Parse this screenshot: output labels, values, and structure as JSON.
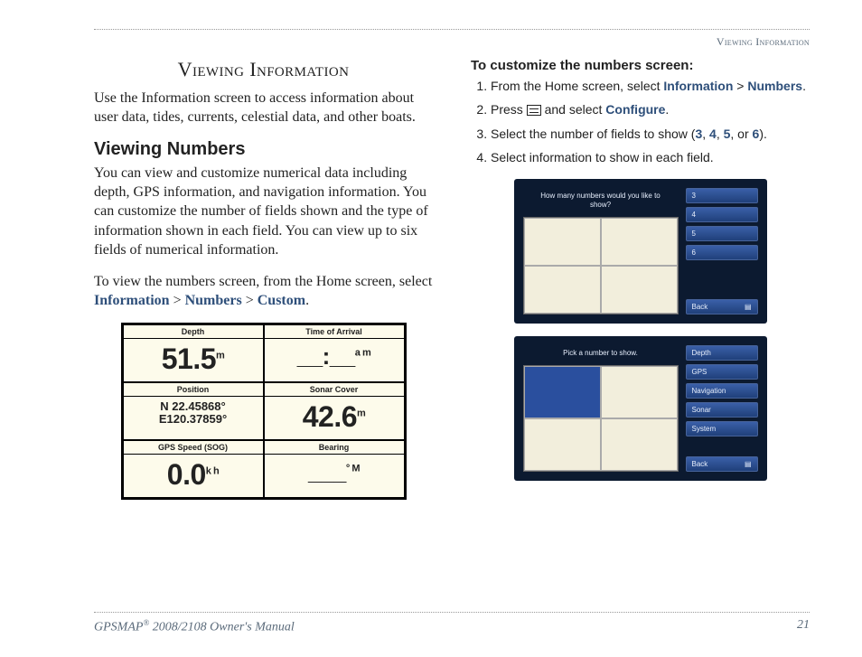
{
  "runningHead": "Viewing Information",
  "left": {
    "title": "Viewing Information",
    "intro": "Use the Information screen to access information about user data, tides, currents, celestial data, and other boats.",
    "subhead": "Viewing Numbers",
    "para1": "You can view and customize numerical data including depth, GPS information, and navigation information. You can customize the number of fields shown and the type of information shown in each field. You can view up to six fields of numerical information.",
    "para2_pre": "To view the numbers screen, from the Home screen, select ",
    "nav1": "Information",
    "gt1": " > ",
    "nav2": "Numbers",
    "gt2": " > ",
    "nav3": "Custom",
    "dot": "."
  },
  "numbersPanel": {
    "cells": [
      {
        "label": "Depth",
        "value": "51.5",
        "unit": "m",
        "big": true
      },
      {
        "label": "Time of Arrival",
        "value": "__:__",
        "unit": "a m"
      },
      {
        "label": "Position",
        "line1": "N  22.45868°",
        "line2": "E120.37859°"
      },
      {
        "label": "Sonar Cover",
        "value": "42.6",
        "unit": "m",
        "big": true
      },
      {
        "label": "GPS Speed (SOG)",
        "value": "0.0",
        "unit": "k h",
        "big": true
      },
      {
        "label": "Bearing",
        "value": "___",
        "unit": "° M"
      }
    ]
  },
  "right": {
    "head": "To customize the numbers screen:",
    "step1_pre": "From the Home screen, select ",
    "step1_a": "Information",
    "step1_gt": " > ",
    "step1_b": "Numbers",
    "step1_dot": ".",
    "step2_pre": "Press ",
    "step2_mid": " and select ",
    "step2_a": "Configure",
    "step2_dot": ".",
    "step3_pre": "Select the number of fields to show (",
    "n3": "3",
    "c1": ", ",
    "n4": "4",
    "c2": ", ",
    "n5": "5",
    "c3": ", or ",
    "n6": "6",
    "step3_post": ").",
    "step4": "Select information to show in each field."
  },
  "device1": {
    "prompt": "How many numbers would you like to show?",
    "buttons": [
      "3",
      "4",
      "5",
      "6"
    ],
    "back": "Back"
  },
  "device2": {
    "prompt": "Pick a number to show.",
    "buttons": [
      "Depth",
      "GPS",
      "Navigation",
      "Sonar",
      "System"
    ],
    "back": "Back"
  },
  "footer": {
    "left_a": "GPSMAP",
    "left_reg": "®",
    "left_b": " 2008/2108  Owner's Manual",
    "page": "21"
  },
  "colors": {
    "link": "#2e4f7a",
    "deviceBg": "#0c1a30",
    "deviceBtn": "#2a4f9e"
  }
}
